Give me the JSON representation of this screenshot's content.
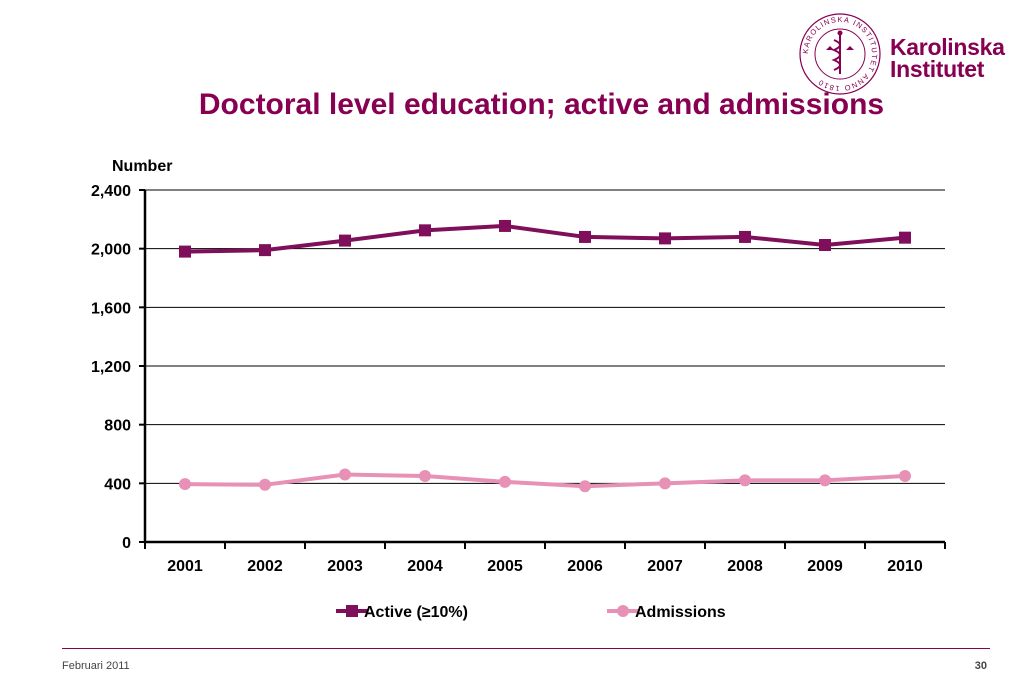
{
  "logo": {
    "seal_text": "KAROLINSKA INSTITUTET ANNO 1810",
    "line1": "Karolinska",
    "line2": "Institutet",
    "seal_icon": "ki-seal-icon"
  },
  "title": "Doctoral level education; active and admissions",
  "footer": {
    "date": "Februari 2011",
    "page": "30"
  },
  "colors": {
    "brand": "#870052",
    "active": "#7f0f5a",
    "admissions": "#e891b6"
  },
  "chart_data": {
    "type": "line",
    "ylabel": "Number",
    "categories": [
      "2001",
      "2002",
      "2003",
      "2004",
      "2005",
      "2006",
      "2007",
      "2008",
      "2009",
      "2010"
    ],
    "ylim": [
      0,
      2400
    ],
    "yticks": [
      0,
      400,
      800,
      1200,
      1600,
      2000,
      2400
    ],
    "ytick_labels": [
      "0",
      "400",
      "800",
      "1,200",
      "1,600",
      "2,000",
      "2,400"
    ],
    "grid": true,
    "legend_position": "bottom",
    "series": [
      {
        "name": "Active (≥10%)",
        "marker": "square",
        "values": [
          1980,
          1990,
          2055,
          2125,
          2155,
          2080,
          2070,
          2080,
          2025,
          2075
        ]
      },
      {
        "name": "Admissions",
        "marker": "circle",
        "values": [
          395,
          390,
          460,
          450,
          410,
          380,
          400,
          420,
          420,
          450
        ]
      }
    ]
  }
}
